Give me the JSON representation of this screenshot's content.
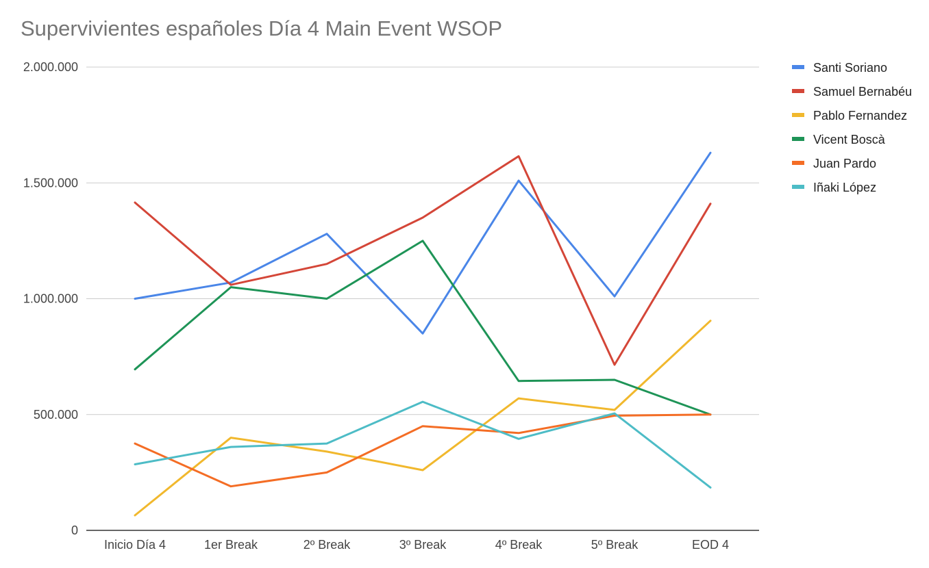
{
  "chart_data": {
    "type": "line",
    "title": "Supervivientes españoles Día 4 Main Event WSOP",
    "xlabel": "",
    "ylabel": "",
    "categories": [
      "Inicio Día 4",
      "1er Break",
      "2º Break",
      "3º Break",
      "4º Break",
      "5º Break",
      "EOD 4"
    ],
    "ylim": [
      0,
      2000000
    ],
    "yticks": [
      0,
      500000,
      1000000,
      1500000,
      2000000
    ],
    "ytick_labels": [
      "0",
      "500.000",
      "1.000.000",
      "1.500.000",
      "2.000.000"
    ],
    "grid": true,
    "legend_position": "right",
    "series": [
      {
        "name": "Santi Soriano",
        "color": "#4a86e8",
        "values": [
          1000000,
          1070000,
          1280000,
          850000,
          1510000,
          1010000,
          1630000
        ]
      },
      {
        "name": "Samuel Bernabéu",
        "color": "#d44638",
        "values": [
          1415000,
          1060000,
          1150000,
          1350000,
          1615000,
          715000,
          1410000
        ]
      },
      {
        "name": "Pablo Fernandez",
        "color": "#f1b82d",
        "values": [
          65000,
          400000,
          340000,
          260000,
          570000,
          520000,
          905000
        ]
      },
      {
        "name": "Vicent Boscà",
        "color": "#1e9457",
        "values": [
          695000,
          1050000,
          1000000,
          1250000,
          645000,
          650000,
          500000
        ]
      },
      {
        "name": "Juan Pardo",
        "color": "#f46d25",
        "values": [
          375000,
          190000,
          250000,
          450000,
          420000,
          495000,
          500000
        ]
      },
      {
        "name": "Iñaki López",
        "color": "#4dbcc6",
        "values": [
          285000,
          360000,
          375000,
          555000,
          395000,
          505000,
          185000
        ]
      }
    ]
  }
}
